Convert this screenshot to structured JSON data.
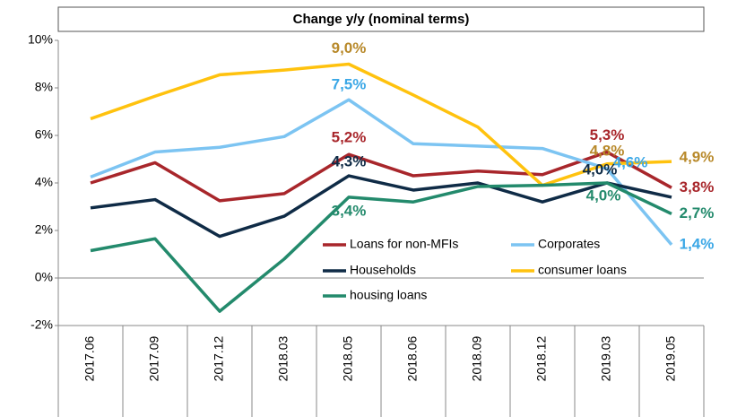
{
  "chart_data": {
    "type": "line",
    "title": "Change y/y (nominal terms)",
    "categories": [
      "2017.06",
      "2017.09",
      "2017.12",
      "2018.03",
      "2018.05",
      "2018.06",
      "2018.09",
      "2018.12",
      "2019.03",
      "2019.05"
    ],
    "ylim": [
      -2,
      10
    ],
    "yticks": [
      {
        "value": -2,
        "label": "-2%"
      },
      {
        "value": 0,
        "label": "0%"
      },
      {
        "value": 2,
        "label": "2%"
      },
      {
        "value": 4,
        "label": "4%"
      },
      {
        "value": 6,
        "label": "6%"
      },
      {
        "value": 8,
        "label": "8%"
      },
      {
        "value": 10,
        "label": "10%"
      }
    ],
    "grid": false,
    "series": [
      {
        "name": "Loans for non-MFIs",
        "color": "#a8262b",
        "label_color": "#a8262b",
        "values": [
          4.0,
          4.85,
          3.25,
          3.55,
          5.2,
          4.3,
          4.5,
          4.35,
          5.3,
          3.8
        ],
        "value_labels": [
          null,
          null,
          null,
          null,
          "5,2%",
          null,
          null,
          null,
          "5,3%",
          "3,8%"
        ]
      },
      {
        "name": "Corporates",
        "color": "#7cc4f2",
        "label_color": "#3aa7e6",
        "values": [
          4.25,
          5.3,
          5.5,
          5.95,
          7.5,
          5.65,
          5.55,
          5.45,
          4.6,
          1.4
        ],
        "value_labels": [
          null,
          null,
          null,
          null,
          "7,5%",
          null,
          null,
          null,
          "4,6%",
          "1,4%"
        ]
      },
      {
        "name": "Households",
        "color": "#0f2b46",
        "label_color": "#0f2b46",
        "values": [
          2.95,
          3.3,
          1.75,
          2.6,
          4.3,
          3.7,
          4.0,
          3.2,
          4.0,
          3.4
        ],
        "value_labels": [
          null,
          null,
          null,
          null,
          "4,3%",
          null,
          null,
          null,
          "4,0%",
          null
        ]
      },
      {
        "name": "consumer loans",
        "color": "#ffc20e",
        "label_color": "#b8892a",
        "values": [
          6.7,
          7.65,
          8.55,
          8.75,
          9.0,
          7.7,
          6.35,
          3.9,
          4.8,
          4.9
        ],
        "value_labels": [
          null,
          null,
          null,
          null,
          "9,0%",
          null,
          null,
          null,
          "4,8%",
          "4,9%"
        ]
      },
      {
        "name": "housing loans",
        "color": "#238a6c",
        "label_color": "#238a6c",
        "values": [
          1.15,
          1.65,
          -1.4,
          0.8,
          3.4,
          3.2,
          3.85,
          3.9,
          4.0,
          2.7
        ],
        "value_labels": [
          null,
          null,
          null,
          null,
          "3,4%",
          null,
          null,
          null,
          "4,0%",
          "2,7%"
        ]
      }
    ]
  }
}
